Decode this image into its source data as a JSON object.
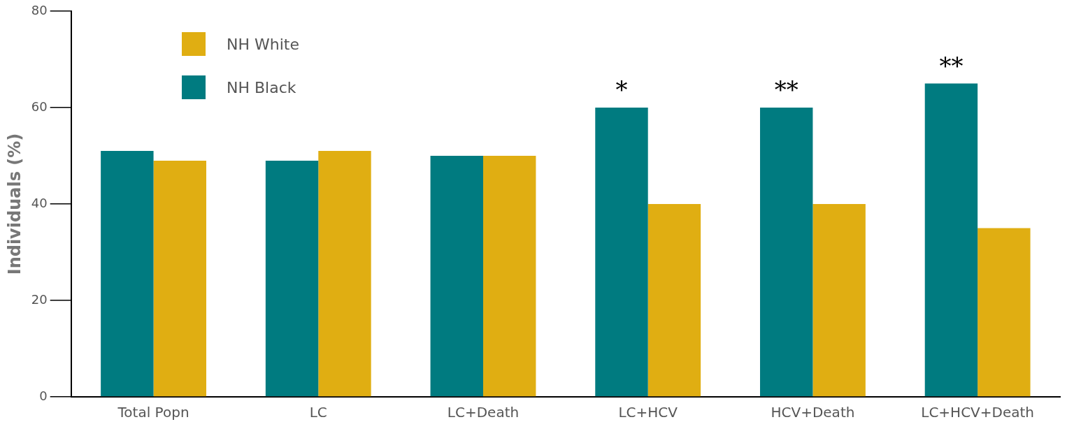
{
  "chart_data": {
    "type": "bar",
    "ylabel": "Individuals (%)",
    "categories": [
      "Total Popn",
      "LC",
      "LC+Death",
      "LC+HCV",
      "HCV+Death",
      "LC+HCV+Death"
    ],
    "series": [
      {
        "name": "NH Black",
        "color": "#007b80",
        "values": [
          51,
          49,
          50,
          60,
          60,
          65
        ]
      },
      {
        "name": "NH White",
        "color": "#e0ae12",
        "values": [
          49,
          51,
          50,
          40,
          40,
          35
        ]
      }
    ],
    "ylim": [
      0,
      80
    ],
    "yticks": [
      0,
      20,
      40,
      60,
      80
    ],
    "grid": false,
    "legend": "top left",
    "annotations": [
      {
        "text": "*",
        "x": "LC+HCV",
        "y": 60
      },
      {
        "text": "**",
        "x": "HCV+Death",
        "y": 60
      },
      {
        "text": "**",
        "x": "LC+HCV+Death",
        "y": 65
      }
    ]
  }
}
